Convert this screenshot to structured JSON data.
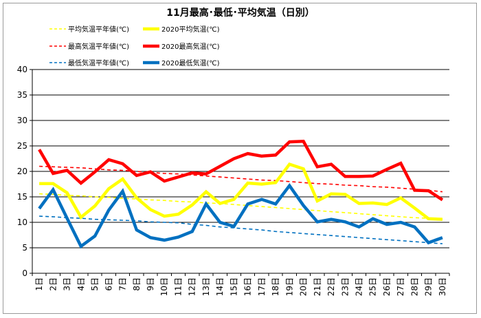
{
  "chart_data": {
    "type": "line",
    "title": "11月最高･最低･平均気温（日別）",
    "ylim": [
      0,
      40
    ],
    "yticks": [
      0,
      5,
      10,
      15,
      20,
      25,
      30,
      35,
      40
    ],
    "grid": true,
    "legend_position": "top",
    "categories": [
      "1日",
      "2日",
      "3日",
      "4日",
      "5日",
      "6日",
      "7日",
      "8日",
      "9日",
      "10日",
      "11日",
      "12日",
      "13日",
      "14日",
      "15日",
      "16日",
      "17日",
      "18日",
      "19日",
      "20日",
      "21日",
      "22日",
      "23日",
      "24日",
      "25日",
      "26日",
      "27日",
      "28日",
      "29日",
      "30日"
    ],
    "series": [
      {
        "name": "平均気温平年値(℃)",
        "color": "#ffff00",
        "style": "dashed",
        "values": [
          15.6,
          15.5,
          15.3,
          15.2,
          15.0,
          14.9,
          14.7,
          14.6,
          14.4,
          14.3,
          14.1,
          14.0,
          13.8,
          13.7,
          13.5,
          13.3,
          13.1,
          12.9,
          12.7,
          12.5,
          12.3,
          12.1,
          11.9,
          11.7,
          11.5,
          11.3,
          11.1,
          10.9,
          10.8,
          10.6
        ]
      },
      {
        "name": "2020平均気温(℃)",
        "color": "#ffff00",
        "style": "solid",
        "values": [
          17.6,
          17.6,
          15.8,
          11.0,
          13.2,
          16.6,
          18.5,
          14.8,
          12.5,
          11.2,
          11.6,
          13.4,
          16.0,
          13.7,
          14.5,
          17.7,
          17.5,
          17.8,
          21.4,
          20.5,
          14.2,
          15.6,
          15.5,
          13.7,
          13.8,
          13.5,
          14.8,
          12.8,
          10.7,
          10.6
        ]
      },
      {
        "name": "最高気温平年値(℃)",
        "color": "#ff0000",
        "style": "dashed",
        "values": [
          21.0,
          20.9,
          20.8,
          20.7,
          20.5,
          20.3,
          20.2,
          20.0,
          19.8,
          19.6,
          19.5,
          19.3,
          19.1,
          18.9,
          18.7,
          18.5,
          18.3,
          18.2,
          18.0,
          17.8,
          17.6,
          17.5,
          17.3,
          17.2,
          17.0,
          16.9,
          16.7,
          16.5,
          16.3,
          16.0
        ]
      },
      {
        "name": "2020最高気温(℃)",
        "color": "#ff0000",
        "style": "solid",
        "values": [
          24.3,
          19.6,
          20.2,
          17.7,
          19.9,
          22.3,
          21.5,
          19.2,
          19.9,
          18.1,
          18.9,
          19.7,
          19.5,
          21.0,
          22.5,
          23.5,
          23.0,
          23.2,
          25.8,
          25.9,
          20.9,
          21.4,
          19.0,
          19.0,
          19.1,
          20.4,
          21.6,
          16.3,
          16.2,
          14.4
        ]
      },
      {
        "name": "最低気温平年値(℃)",
        "color": "#0070c0",
        "style": "dashed",
        "values": [
          11.2,
          11.1,
          10.9,
          10.8,
          10.6,
          10.5,
          10.4,
          10.3,
          10.1,
          10.0,
          9.9,
          9.6,
          9.4,
          9.1,
          8.9,
          8.7,
          8.5,
          8.2,
          8.0,
          7.8,
          7.6,
          7.4,
          7.2,
          7.0,
          6.8,
          6.6,
          6.4,
          6.2,
          6.0,
          5.8
        ]
      },
      {
        "name": "2020最低気温(℃)",
        "color": "#0070c0",
        "style": "solid",
        "values": [
          12.7,
          16.4,
          10.8,
          5.3,
          7.3,
          12.4,
          16.1,
          8.5,
          7.0,
          6.5,
          7.1,
          8.2,
          13.6,
          10.0,
          9.2,
          13.6,
          14.5,
          13.6,
          17.2,
          13.3,
          10.1,
          10.6,
          10.1,
          9.1,
          10.7,
          9.6,
          10.0,
          9.1,
          6.0,
          7.0
        ]
      }
    ]
  }
}
